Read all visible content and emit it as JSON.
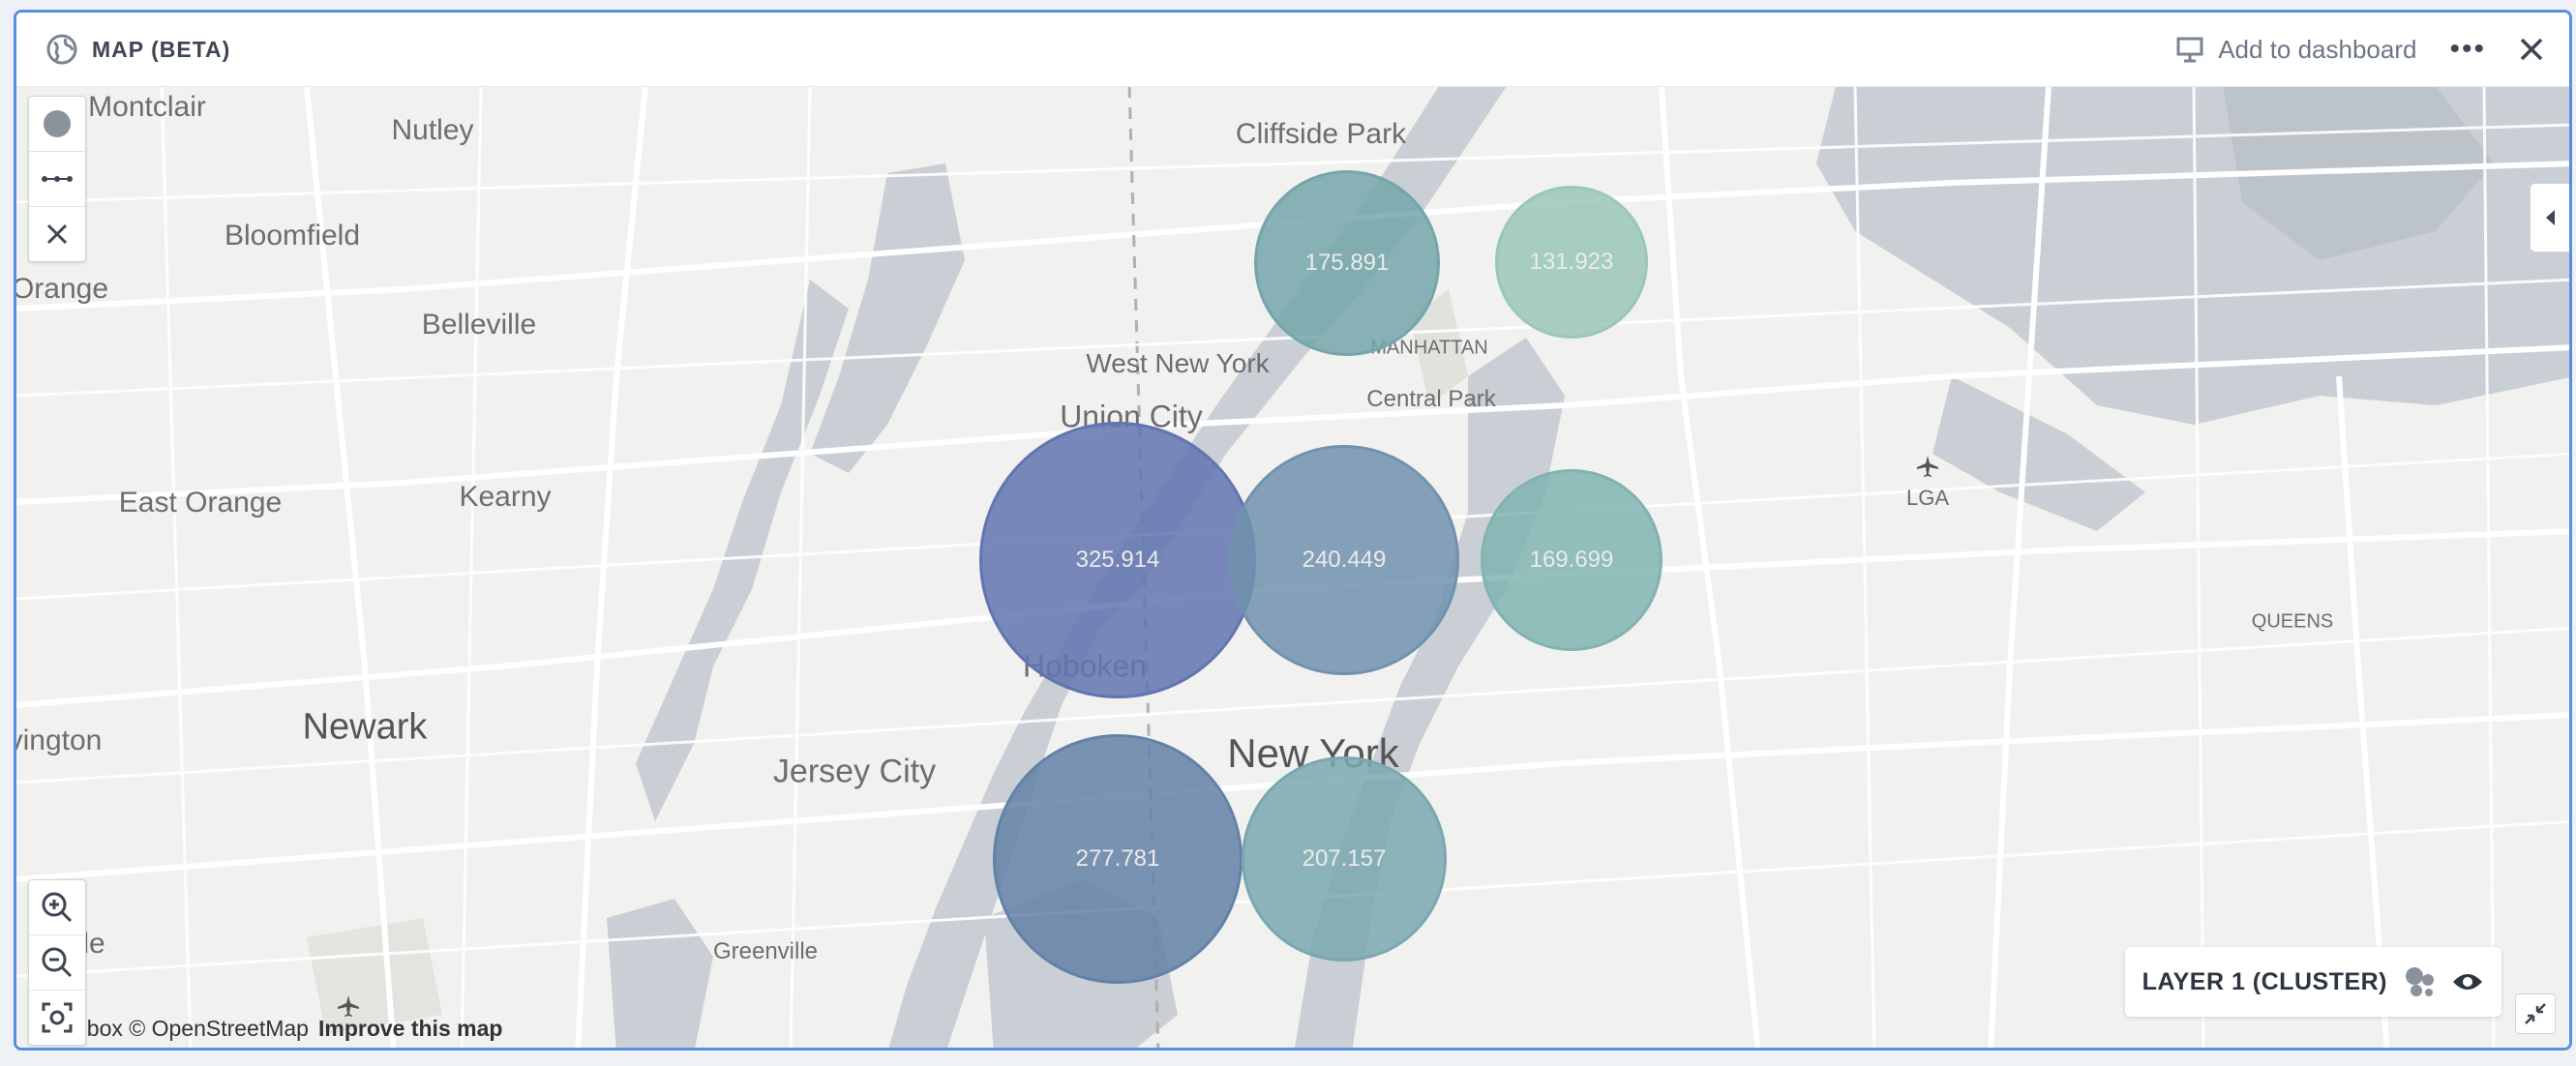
{
  "header": {
    "title": "MAP (BETA)",
    "add_to_dashboard": "Add to dashboard",
    "more": "•••"
  },
  "map": {
    "labels": [
      {
        "id": "montclair",
        "text": "Montclair"
      },
      {
        "id": "nutley",
        "text": "Nutley"
      },
      {
        "id": "cliffside-park",
        "text": "Cliffside Park"
      },
      {
        "id": "bloomfield",
        "text": "Bloomfield"
      },
      {
        "id": "orange",
        "text": "Orange"
      },
      {
        "id": "belleville",
        "text": "Belleville"
      },
      {
        "id": "west-new-york",
        "text": "West New York"
      },
      {
        "id": "manhattan",
        "text": "MANHATTAN"
      },
      {
        "id": "central-park",
        "text": "Central Park"
      },
      {
        "id": "union-city",
        "text": "Union City"
      },
      {
        "id": "east-orange",
        "text": "East Orange"
      },
      {
        "id": "kearny",
        "text": "Kearny"
      },
      {
        "id": "lga",
        "text": "LGA"
      },
      {
        "id": "queens",
        "text": "QUEENS"
      },
      {
        "id": "hoboken",
        "text": "Hoboken"
      },
      {
        "id": "newark",
        "text": "Newark"
      },
      {
        "id": "irvington",
        "text": "vington"
      },
      {
        "id": "jersey-city",
        "text": "Jersey City"
      },
      {
        "id": "new-york",
        "text": "New York"
      },
      {
        "id": "greenville",
        "text": "Greenville"
      },
      {
        "id": "hillside",
        "text": "de"
      }
    ],
    "clusters": [
      {
        "id": "c1",
        "value": "175.891",
        "color": "#7fb4b8"
      },
      {
        "id": "c2",
        "value": "131.923",
        "color": "#a6d8c8"
      },
      {
        "id": "c3",
        "value": "325.914",
        "color": "#6a7fbf"
      },
      {
        "id": "c4",
        "value": "240.449",
        "color": "#7a9fbd"
      },
      {
        "id": "c5",
        "value": "169.699",
        "color": "#8cc3bf"
      },
      {
        "id": "c6",
        "value": "277.781",
        "color": "#6c8db5"
      },
      {
        "id": "c7",
        "value": "207.157",
        "color": "#86b6c0"
      }
    ]
  },
  "attribution": {
    "text": "pbox © OpenStreetMap",
    "improve": "Improve this map"
  },
  "layer": {
    "name": "LAYER 1 (CLUSTER)"
  },
  "colors": {
    "accent_border": "#5a8ee0",
    "water": "#c9cfd4",
    "land": "#f1f1f0",
    "roads": "#ffffff"
  }
}
